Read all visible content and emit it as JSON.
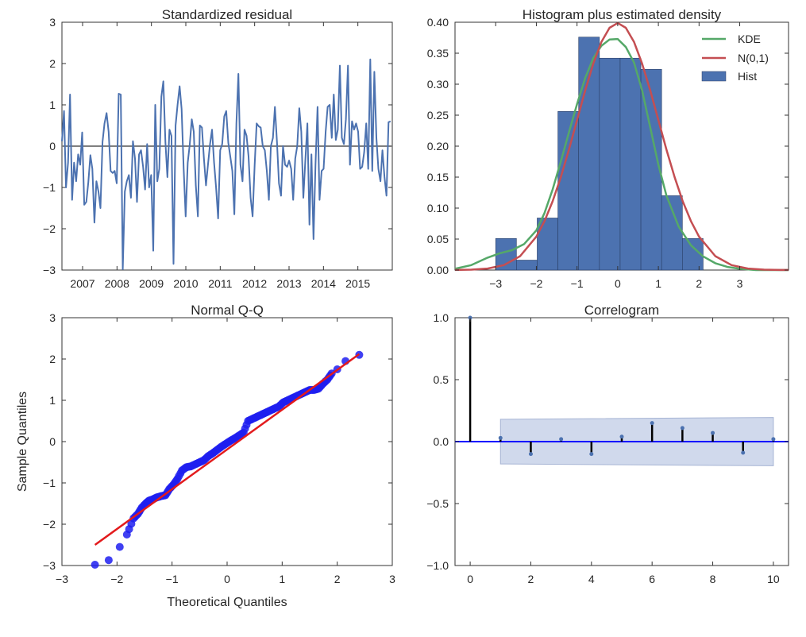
{
  "chart_data": [
    {
      "type": "line",
      "title": "Standardized residual",
      "xlabel": "",
      "ylabel": "",
      "ylim": [
        -3,
        3
      ],
      "yticks": [
        -3,
        -2,
        -1,
        0,
        1,
        2,
        3
      ],
      "xlim": [
        2006.4,
        2016.0
      ],
      "xticks": [
        2007,
        2008,
        2009,
        2010,
        2011,
        2012,
        2013,
        2014,
        2015
      ],
      "xtick_labels": [
        "2007",
        "2008",
        "2009",
        "2010",
        "2011",
        "2012",
        "2013",
        "2014",
        "2015"
      ],
      "zero_line": true,
      "color": "#4c72b0",
      "series": [
        {
          "values": [
            0.12,
            0.85,
            -1.0,
            -0.4,
            1.25,
            -1.3,
            -0.4,
            -0.85,
            -0.2,
            -0.45,
            0.33,
            -1.42,
            -1.35,
            -0.88,
            -0.22,
            -0.55,
            -1.85,
            -0.85,
            -1.1,
            -1.5,
            0.1,
            0.55,
            0.8,
            0.35,
            -0.6,
            -0.65,
            -0.6,
            -0.9,
            1.27,
            1.25,
            -2.98,
            -1.1,
            -0.85,
            -0.7,
            -1.25,
            0.12,
            -0.3,
            -1.35,
            -0.2,
            -0.1,
            -0.5,
            -1.05,
            0.05,
            -1.0,
            -0.7,
            -2.53,
            1.0,
            -0.85,
            -0.55,
            1.2,
            1.57,
            0.1,
            -0.75,
            0.4,
            0.25,
            -2.85,
            0.5,
            1.0,
            1.45,
            0.9,
            -0.55,
            -1.7,
            -0.4,
            0.03,
            0.65,
            0.35,
            -0.95,
            -1.7,
            0.5,
            0.45,
            -0.3,
            -0.95,
            -0.45,
            0.05,
            0.4,
            -0.4,
            -1.0,
            -1.75,
            -0.1,
            0.05,
            0.72,
            0.85,
            0.08,
            -0.25,
            -0.6,
            -1.65,
            0.55,
            1.75,
            -0.45,
            -0.85,
            0.4,
            0.25,
            -0.25,
            -1.25,
            -1.7,
            -0.45,
            0.55,
            0.48,
            0.45,
            0.0,
            -0.1,
            -0.6,
            -1.3,
            0.0,
            0.2,
            0.95,
            0.1,
            -0.9,
            -1.2,
            0.0,
            -0.45,
            -0.5,
            -0.35,
            -0.55,
            -1.3,
            -0.3,
            0.0,
            0.92,
            0.35,
            -1.25,
            -0.35,
            0.55,
            -1.9,
            -0.2,
            -2.25,
            -0.45,
            0.95,
            -1.3,
            -0.6,
            -0.55,
            0.35,
            0.95,
            1.0,
            0.2,
            1.25,
            0.15,
            0.4,
            1.95,
            0.2,
            0.05,
            0.65,
            1.95,
            -0.45,
            0.6,
            0.4,
            0.55,
            0.35,
            -0.55,
            -0.5,
            -0.15,
            0.55,
            -0.55,
            2.1,
            -0.6,
            1.8,
            0.2,
            -0.55,
            -0.85,
            -0.1,
            -0.75,
            -1.2,
            0.58,
            0.6
          ]
        }
      ]
    },
    {
      "type": "bar",
      "title": "Histogram plus estimated density",
      "xlabel": "",
      "ylabel": "",
      "xlim": [
        -4,
        4.2
      ],
      "ylim": [
        0,
        0.4
      ],
      "xticks": [
        -3,
        -2,
        -1,
        0,
        1,
        2,
        3
      ],
      "yticks": [
        0.0,
        0.05,
        0.1,
        0.15,
        0.2,
        0.25,
        0.3,
        0.35,
        0.4
      ],
      "legend_position": "top-right",
      "hist": {
        "name": "Hist",
        "color": "#4c72b0",
        "bin_edges": [
          -3.0,
          -2.49,
          -1.98,
          -1.47,
          -0.96,
          -0.45,
          0.06,
          0.57,
          1.08,
          1.59,
          2.1
        ],
        "values": [
          0.051,
          0.016,
          0.084,
          0.256,
          0.376,
          0.342,
          0.342,
          0.324,
          0.12,
          0.051
        ]
      },
      "series": [
        {
          "name": "KDE",
          "color": "#55a868",
          "x": [
            -4.0,
            -3.6,
            -3.2,
            -2.9,
            -2.6,
            -2.3,
            -2.0,
            -1.8,
            -1.6,
            -1.4,
            -1.2,
            -1.0,
            -0.8,
            -0.6,
            -0.4,
            -0.2,
            0.0,
            0.2,
            0.4,
            0.6,
            0.8,
            1.0,
            1.2,
            1.5,
            1.8,
            2.1,
            2.4,
            2.7,
            3.0,
            3.4,
            3.8,
            4.2
          ],
          "y": [
            0.002,
            0.008,
            0.02,
            0.027,
            0.032,
            0.042,
            0.064,
            0.092,
            0.13,
            0.175,
            0.222,
            0.268,
            0.31,
            0.342,
            0.362,
            0.372,
            0.373,
            0.36,
            0.335,
            0.29,
            0.23,
            0.17,
            0.12,
            0.07,
            0.04,
            0.022,
            0.011,
            0.005,
            0.002,
            0.0,
            0.0,
            0.0
          ]
        },
        {
          "name": "N(0,1)",
          "color": "#c44e52",
          "x": [
            -4.0,
            -3.6,
            -3.2,
            -2.8,
            -2.4,
            -2.0,
            -1.8,
            -1.6,
            -1.4,
            -1.2,
            -1.0,
            -0.8,
            -0.6,
            -0.4,
            -0.2,
            0.0,
            0.2,
            0.4,
            0.6,
            0.8,
            1.0,
            1.2,
            1.4,
            1.6,
            1.8,
            2.0,
            2.4,
            2.8,
            3.2,
            3.6,
            4.0,
            4.2
          ],
          "y": [
            0.0001,
            0.0006,
            0.0024,
            0.0079,
            0.0224,
            0.054,
            0.079,
            0.1109,
            0.1497,
            0.1942,
            0.242,
            0.2897,
            0.3332,
            0.3683,
            0.391,
            0.3989,
            0.391,
            0.3683,
            0.3332,
            0.2897,
            0.242,
            0.1942,
            0.1497,
            0.1109,
            0.079,
            0.054,
            0.0224,
            0.0079,
            0.0024,
            0.0006,
            0.0001,
            0.0001
          ]
        }
      ]
    },
    {
      "type": "scatter",
      "title": "Normal Q-Q",
      "xlabel": "Theoretical Quantiles",
      "ylabel": "Sample Quantiles",
      "xlim": [
        -3,
        3
      ],
      "ylim": [
        -3,
        3
      ],
      "xticks": [
        -3,
        -2,
        -1,
        0,
        1,
        2,
        3
      ],
      "yticks": [
        -3,
        -2,
        -1,
        0,
        1,
        2,
        3
      ],
      "point_color": "#1f1ff0",
      "line_color": "#e31a1c",
      "reference_line": {
        "x": [
          -2.4,
          2.4
        ],
        "y": [
          -2.5,
          2.12
        ]
      },
      "points": {
        "x": [
          -2.4,
          -2.15,
          -1.95,
          -1.82,
          -1.7,
          -1.62,
          -1.55,
          -1.48,
          -1.42,
          -1.35,
          -1.28,
          -1.2,
          -1.12,
          -1.05,
          -0.98,
          -0.9,
          -0.82,
          -0.74,
          -0.66,
          -0.58,
          -0.5,
          -0.42,
          -0.34,
          -0.26,
          -0.18,
          -0.1,
          -0.02,
          0.06,
          0.14,
          0.22,
          0.3,
          0.38,
          0.46,
          0.54,
          0.62,
          0.7,
          0.78,
          0.86,
          0.94,
          1.02,
          1.1,
          1.18,
          1.26,
          1.34,
          1.42,
          1.5,
          1.58,
          1.66,
          1.74,
          1.82,
          1.9,
          2.0,
          2.15,
          2.4
        ],
        "y": [
          -2.98,
          -2.87,
          -2.55,
          -2.25,
          -1.86,
          -1.75,
          -1.6,
          -1.5,
          -1.43,
          -1.4,
          -1.35,
          -1.32,
          -1.3,
          -1.15,
          -1.05,
          -0.9,
          -0.7,
          -0.62,
          -0.6,
          -0.55,
          -0.5,
          -0.45,
          -0.35,
          -0.28,
          -0.2,
          -0.12,
          -0.05,
          0.02,
          0.08,
          0.15,
          0.22,
          0.5,
          0.55,
          0.6,
          0.65,
          0.7,
          0.75,
          0.8,
          0.85,
          0.95,
          1.0,
          1.05,
          1.1,
          1.15,
          1.2,
          1.25,
          1.25,
          1.28,
          1.4,
          1.5,
          1.65,
          1.75,
          1.95,
          2.1
        ]
      }
    },
    {
      "type": "bar",
      "title": "Correlogram",
      "xlabel": "",
      "ylabel": "",
      "xlim": [
        -0.5,
        10.5
      ],
      "ylim": [
        -1.0,
        1.0
      ],
      "xticks": [
        0,
        2,
        4,
        6,
        8,
        10
      ],
      "yticks": [
        -1.0,
        -0.5,
        0.0,
        0.5,
        1.0
      ],
      "lags": [
        0,
        1,
        2,
        3,
        4,
        5,
        6,
        7,
        8,
        9,
        10
      ],
      "values": [
        1.0,
        0.03,
        -0.1,
        0.02,
        -0.1,
        0.04,
        0.15,
        0.11,
        0.07,
        -0.09,
        0.02
      ],
      "confidence_band": {
        "x": [
          1,
          10
        ],
        "upper": [
          0.18,
          0.195
        ],
        "lower": [
          -0.18,
          -0.195
        ],
        "color": "#b0c0e0"
      },
      "zero_line_color": "#0000ff",
      "stem_color": "#000000",
      "marker_color": "#4c72b0"
    }
  ]
}
